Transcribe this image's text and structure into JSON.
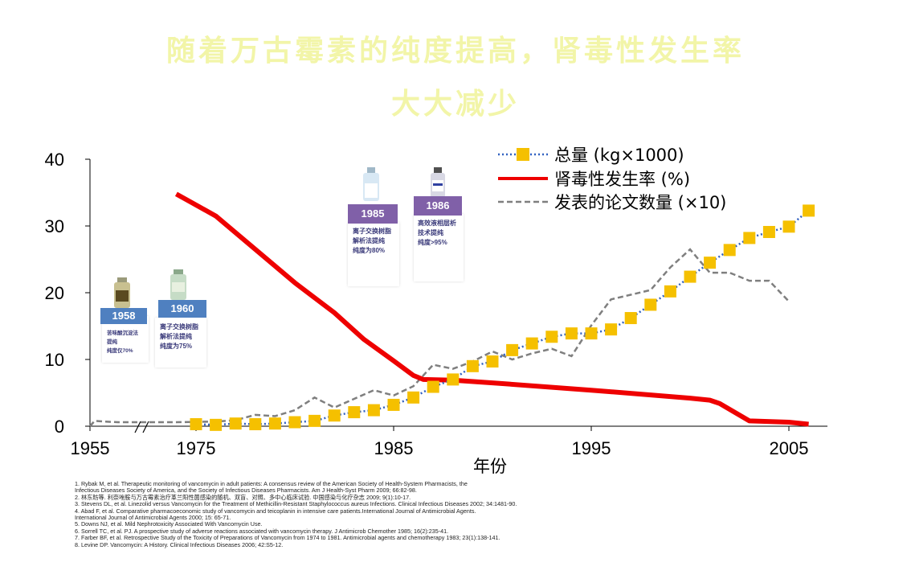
{
  "title_line1": "随着万古霉素的纯度提高，肾毒性发生率",
  "title_line2": "大大减少",
  "chart_data": {
    "type": "line",
    "xlabel": "年份",
    "ylabel": "",
    "x_ticks": [
      "1955",
      "1975",
      "1985",
      "1995",
      "2005"
    ],
    "y_ticks": [
      "0",
      "10",
      "20",
      "30",
      "40"
    ],
    "ylim": [
      0,
      40
    ],
    "axis_break": "between 1955 and 1975",
    "legend_position": "top-right",
    "series": [
      {
        "name": "总量 (kg×1000)",
        "style": "dotted-blue-with-yellow-squares",
        "color": "#f5c000",
        "points": [
          [
            1975,
            0.3
          ],
          [
            1976,
            0.2
          ],
          [
            1977,
            0.4
          ],
          [
            1978,
            0.3
          ],
          [
            1979,
            0.4
          ],
          [
            1980,
            0.6
          ],
          [
            1981,
            0.8
          ],
          [
            1982,
            1.6
          ],
          [
            1983,
            2.1
          ],
          [
            1984,
            2.4
          ],
          [
            1985,
            3.2
          ],
          [
            1986,
            4.3
          ],
          [
            1987,
            5.9
          ],
          [
            1988,
            7.0
          ],
          [
            1989,
            9.0
          ],
          [
            1990,
            9.7
          ],
          [
            1991,
            11.4
          ],
          [
            1992,
            12.4
          ],
          [
            1993,
            13.4
          ],
          [
            1994,
            13.9
          ],
          [
            1995,
            13.9
          ],
          [
            1996,
            14.5
          ],
          [
            1997,
            16.2
          ],
          [
            1998,
            18.2
          ],
          [
            1999,
            20.2
          ],
          [
            2000,
            22.4
          ],
          [
            2001,
            24.5
          ],
          [
            2002,
            26.4
          ],
          [
            2003,
            28.2
          ],
          [
            2004,
            29.1
          ],
          [
            2005,
            29.9
          ],
          [
            2006,
            32.3
          ]
        ]
      },
      {
        "name": "肾毒性发生率 (%)",
        "style": "solid-red-thick",
        "color": "#ee0000",
        "points": [
          [
            1974,
            34.8
          ],
          [
            1976,
            31.5
          ],
          [
            1978,
            26.5
          ],
          [
            1980,
            21.5
          ],
          [
            1982,
            17.0
          ],
          [
            1983.5,
            13.0
          ],
          [
            1985,
            9.8
          ],
          [
            1986,
            7.6
          ],
          [
            1986.5,
            7.0
          ],
          [
            1988,
            6.9
          ],
          [
            1990,
            6.5
          ],
          [
            1995,
            5.4
          ],
          [
            2000,
            4.2
          ],
          [
            2001,
            3.9
          ],
          [
            2001.5,
            3.4
          ],
          [
            2003,
            0.8
          ],
          [
            2005,
            0.6
          ],
          [
            2006,
            0.3
          ]
        ]
      },
      {
        "name": "发表的论文数量 (×10)",
        "style": "dashed-gray",
        "color": "#7f7f7f",
        "points": [
          [
            1955,
            0.0
          ],
          [
            1956,
            0.8
          ],
          [
            1958,
            0.7
          ],
          [
            1961,
            0.6
          ],
          [
            1963,
            0.6
          ],
          [
            1966,
            0.6
          ],
          [
            1970,
            0.6
          ],
          [
            1974,
            0.6
          ],
          [
            1976,
            0.7
          ],
          [
            1977,
            0.9
          ],
          [
            1978,
            1.7
          ],
          [
            1979,
            1.5
          ],
          [
            1980,
            2.4
          ],
          [
            1981,
            4.3
          ],
          [
            1982,
            2.8
          ],
          [
            1983,
            4.1
          ],
          [
            1984,
            5.4
          ],
          [
            1985,
            4.6
          ],
          [
            1986,
            6.0
          ],
          [
            1987,
            9.2
          ],
          [
            1988,
            8.6
          ],
          [
            1989,
            9.7
          ],
          [
            1990,
            11.2
          ],
          [
            1991,
            10.0
          ],
          [
            1992,
            10.9
          ],
          [
            1993,
            11.6
          ],
          [
            1994,
            10.5
          ],
          [
            1995,
            15.1
          ],
          [
            1996,
            19.0
          ],
          [
            1997,
            19.7
          ],
          [
            1998,
            20.4
          ],
          [
            1999,
            23.8
          ],
          [
            2000,
            26.5
          ],
          [
            2001,
            23.0
          ],
          [
            2002,
            23.0
          ],
          [
            2003,
            21.8
          ],
          [
            2004,
            21.8
          ],
          [
            2005,
            18.7
          ]
        ]
      }
    ]
  },
  "cards": [
    {
      "year": "1958",
      "desc": "苦味酸沉淀法\n提纯\n纯度仅70%",
      "color": "#4f80c0"
    },
    {
      "year": "1960",
      "desc": "离子交换树脂\n解析法提纯\n纯度为75%",
      "color": "#4f80c0"
    },
    {
      "year": "1985",
      "desc": "离子交换树脂\n解析法提纯\n纯度为80%",
      "color": "#8060a8"
    },
    {
      "year": "1986",
      "desc": "高效液相层析\n技术提纯\n纯度>95%",
      "color": "#8060a8"
    }
  ],
  "references": [
    "1. Rybak M, et al. Therapeutic monitoring of vancomycin in adult patients: A consensus review of the American Society of Health-System Pharmacists, the",
    "Infectious Diseases Society of America, and the Society of Infectious Diseases Pharmacists. Am J Health-Syst Pharm 2009; 66:82-98.",
    "2. 林东昉等. 利奈唑胺与万古霉素治疗革兰阳性菌感染的随机、双盲、对照、多中心临床试验. 中国感染与化疗杂志 2009; 9(1):10-17.",
    "3. Stevens DL, et al. Linezolid versus Vancomycin for the Treatment of Methicillin-Resistant Staphylococcus aureus Infections. Clinical Infectious Diseases 2002; 34:1481-90.",
    "4. Abad F, et al. Comparative pharmacoeconomic study of vancomycin and teicoplanin in intensive care patients.International Journal of Antimicrobial Agents.",
    "International Journal of Antimicrobial Agents 2000; 15: 65-71.",
    "5. Downs NJ, et al. Mild Nephrotoxicity Associated With Vancomycin Use.",
    "6. Sorrell TC, et al. PJ. A prospective study of adverse reactions associated with vancomycin therapy. J Antimicrob Chemother 1985; 16(2):235-41.",
    "7. Farber BF, et al. Retrospective Study of the Toxicity of Preparations of Vancomycin from 1974 to 1981. Antimicrobial agents and chemotherapy 1983; 23(1):138-141.",
    "8. Levine DP. Vancomycin: A History. Clinical Infectious Diseases 2006; 42:S5-12."
  ]
}
